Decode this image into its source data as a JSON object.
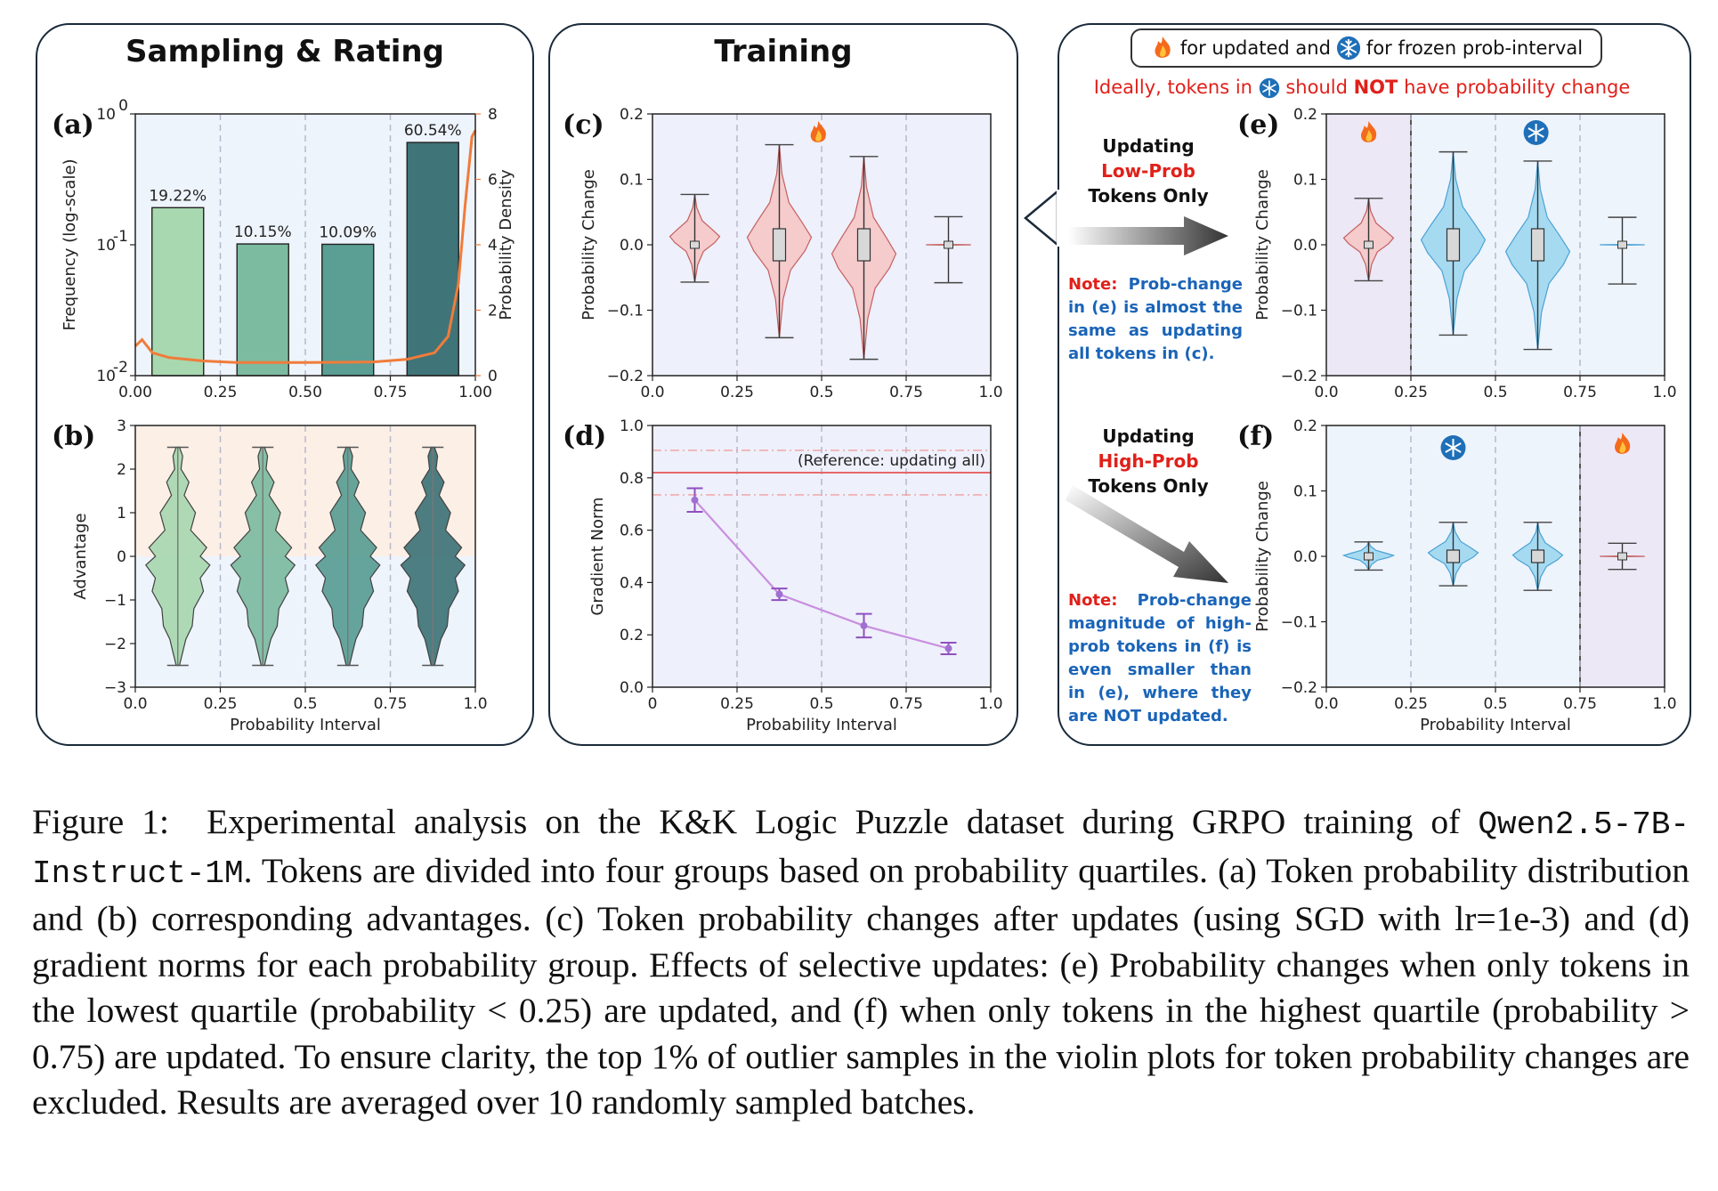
{
  "panels": {
    "left_title": "Sampling & Rating",
    "mid_title": "Training"
  },
  "legend": {
    "updated_text": "for updated and",
    "frozen_text": "for frozen prob-interval",
    "ideal_prefix": "Ideally, tokens in",
    "ideal_mid": "should",
    "ideal_not": "NOT",
    "ideal_suffix": "have probability change"
  },
  "updating_low": {
    "line1": "Updating",
    "line2": "Low-Prob",
    "line3": "Tokens Only"
  },
  "updating_high": {
    "line1": "Updating",
    "line2": "High-Prob",
    "line3": "Tokens Only"
  },
  "note_e": {
    "label": "Note:",
    "text": "Prob-change in (e) is almost the same as updating all tokens in (c)."
  },
  "note_f": {
    "label": "Note:",
    "text": "Prob-change magnitude of high-prob tokens in (f) is even smaller than in (e), where they are NOT updated."
  },
  "caption": {
    "prefix": "Figure 1:",
    "part1": "Experimental analysis on the K&K Logic Puzzle dataset during GRPO training of",
    "model": "Qwen2.5-7B-Instruct-1M",
    "part2": ". Tokens are divided into four groups based on probability quartiles. (a) Token probability distribution and (b) corresponding advantages. (c) Token probability changes after updates (using SGD with lr=1e-3) and (d) gradient norms for each probability group. Effects of selective updates: (e) Probability changes when only tokens in the lowest quartile (probability < 0.25) are updated, and (f) when only tokens in the highest quartile (probability > 0.75) are updated. To ensure clarity, the top 1% of outlier samples in the violin plots for token probability changes are excluded. Results are averaged over 10 randomly sampled batches."
  },
  "colors": {
    "green1": "#a8d8b0",
    "green2": "#7dbba0",
    "green3": "#5a9e94",
    "green4": "#3f7478",
    "orange": "#f07c3a",
    "pink_violin": "#f6c8c8",
    "blue_violin": "#9fd8f0",
    "purple": "#c98fe0"
  },
  "chart_data": [
    {
      "id": "a",
      "type": "bar",
      "xlabel": "",
      "ylabel": "Frequency (log-scale)",
      "y2label": "Probability Density",
      "categories": [
        "0.00-0.25",
        "0.25-0.50",
        "0.50-0.75",
        "0.75-1.00"
      ],
      "values": [
        0.1922,
        0.1015,
        0.1009,
        0.6054
      ],
      "value_labels": [
        "19.22%",
        "10.15%",
        "10.09%",
        "60.54%"
      ],
      "yscale": "log",
      "ylim": [
        0.01,
        1
      ],
      "yticks": [
        "10^-2",
        "10^-1",
        "10^0"
      ],
      "xticks": [
        "0.00",
        "0.25",
        "0.50",
        "0.75",
        "1.00"
      ],
      "y2ticks": [
        "0",
        "2",
        "4",
        "6",
        "8"
      ],
      "y2lim": [
        0,
        8
      ],
      "density_curve": {
        "x": [
          0,
          0.02,
          0.05,
          0.1,
          0.2,
          0.3,
          0.5,
          0.7,
          0.8,
          0.88,
          0.92,
          0.95,
          0.97,
          0.99,
          1.0
        ],
        "y": [
          0.9,
          1.1,
          0.7,
          0.55,
          0.45,
          0.4,
          0.4,
          0.42,
          0.5,
          0.7,
          1.2,
          2.8,
          5.2,
          7.3,
          7.5
        ]
      }
    },
    {
      "id": "b",
      "type": "violin",
      "xlabel": "Probability Interval",
      "ylabel": "Advantage",
      "xticks": [
        "0.0",
        "0.25",
        "0.5",
        "0.75",
        "1.0"
      ],
      "yticks": [
        "−3",
        "−2",
        "−1",
        "0",
        "1",
        "2",
        "3"
      ],
      "ylim": [
        -3,
        3
      ],
      "groups": [
        0.125,
        0.375,
        0.625,
        0.875
      ],
      "range": [
        -2.5,
        2.5
      ]
    },
    {
      "id": "c",
      "type": "violin",
      "xlabel": "",
      "ylabel": "Probability Change",
      "xticks": [
        "0.0",
        "0.25",
        "0.5",
        "0.75",
        "1.0"
      ],
      "yticks": [
        "−0.2",
        "−0.1",
        "0.0",
        "0.1",
        "0.2"
      ],
      "ylim": [
        -0.2,
        0.2
      ],
      "groups": [
        {
          "x": 0.125,
          "min": -0.057,
          "max": 0.077
        },
        {
          "x": 0.375,
          "min": -0.142,
          "max": 0.153
        },
        {
          "x": 0.625,
          "min": -0.175,
          "max": 0.135
        },
        {
          "x": 0.875,
          "min": -0.058,
          "max": 0.043
        }
      ]
    },
    {
      "id": "d",
      "type": "line",
      "xlabel": "Probability Interval",
      "ylabel": "Gradient Norm",
      "xticks": [
        "0",
        "0.25",
        "0.5",
        "0.75",
        "1.0"
      ],
      "yticks": [
        "0.0",
        "0.2",
        "0.4",
        "0.6",
        "0.8",
        "1.0"
      ],
      "ylim": [
        0,
        1
      ],
      "x": [
        0.125,
        0.375,
        0.625,
        0.875
      ],
      "y": [
        0.715,
        0.355,
        0.235,
        0.148
      ],
      "err": [
        0.045,
        0.022,
        0.045,
        0.022
      ],
      "reference": {
        "label": "(Reference: updating all)",
        "value": 0.82,
        "band": [
          0.735,
          0.905
        ]
      }
    },
    {
      "id": "e",
      "type": "violin",
      "xlabel": "",
      "ylabel": "Probability Change",
      "xticks": [
        "0.0",
        "0.25",
        "0.5",
        "0.75",
        "1.0"
      ],
      "yticks": [
        "−0.2",
        "−0.1",
        "0.0",
        "0.1",
        "0.2"
      ],
      "ylim": [
        -0.2,
        0.2
      ],
      "groups": [
        {
          "x": 0.125,
          "min": -0.055,
          "max": 0.071
        },
        {
          "x": 0.375,
          "min": -0.138,
          "max": 0.142
        },
        {
          "x": 0.625,
          "min": -0.16,
          "max": 0.128
        },
        {
          "x": 0.875,
          "min": -0.06,
          "max": 0.042
        }
      ]
    },
    {
      "id": "f",
      "type": "violin",
      "xlabel": "Probability Interval",
      "ylabel": "Probability Change",
      "xticks": [
        "0.0",
        "0.25",
        "0.5",
        "0.75",
        "1.0"
      ],
      "yticks": [
        "−0.2",
        "−0.1",
        "0.0",
        "0.1",
        "0.2"
      ],
      "ylim": [
        -0.2,
        0.2
      ],
      "groups": [
        {
          "x": 0.125,
          "min": -0.021,
          "max": 0.022
        },
        {
          "x": 0.375,
          "min": -0.045,
          "max": 0.052
        },
        {
          "x": 0.625,
          "min": -0.052,
          "max": 0.052
        },
        {
          "x": 0.875,
          "min": -0.02,
          "max": 0.02
        }
      ]
    }
  ]
}
